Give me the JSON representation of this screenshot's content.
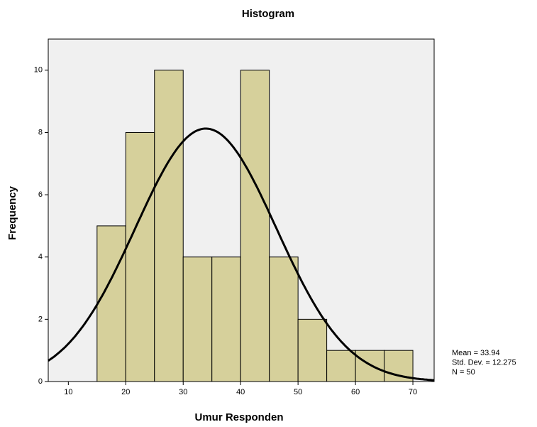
{
  "chart_data": {
    "type": "histogram",
    "title": "Histogram",
    "x_label": "Umur Responden",
    "y_label": "Frequency",
    "bins": [
      15,
      20,
      25,
      30,
      35,
      40,
      45,
      50,
      55,
      60,
      65,
      70
    ],
    "values": [
      5,
      8,
      10,
      4,
      4,
      10,
      4,
      2,
      1,
      1,
      1
    ],
    "color": "#d6d09b",
    "curve_color": "#000000",
    "background": "#f0f0f0",
    "xlim": [
      6.5,
      73.7
    ],
    "ylim": [
      0,
      11
    ],
    "xticks": [
      10,
      20,
      30,
      40,
      50,
      60,
      70
    ],
    "yticks": [
      0,
      2,
      4,
      6,
      8,
      10
    ],
    "stats": [
      {
        "value": 33.94,
        "label": "Mean = 33.94"
      },
      {
        "value": 12.275,
        "label": "Std. Dev. = 12.275"
      },
      {
        "value": 50,
        "label": "N = 50"
      }
    ]
  }
}
